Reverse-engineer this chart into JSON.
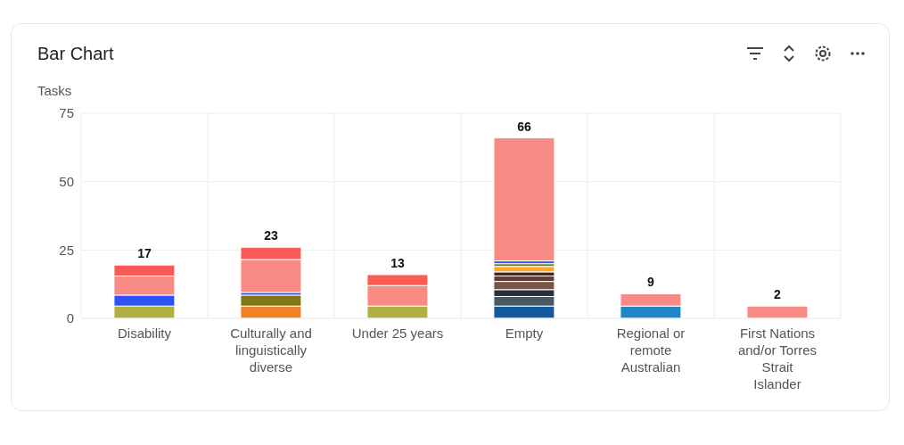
{
  "chart_data": {
    "type": "bar",
    "title": "Bar Chart",
    "ylabel": "Tasks",
    "stacked": true,
    "categories": [
      "Disability",
      "Culturally and linguistically diverse",
      "Under 25 years",
      "Empty",
      "Regional or remote Australian",
      "First Nations and/or Torres Strait Islander"
    ],
    "series": [
      {
        "color": "#b0b043",
        "values": [
          4.5,
          null,
          4.5,
          null,
          null,
          null
        ]
      },
      {
        "color": "#ef8129",
        "values": [
          null,
          4.5,
          null,
          null,
          null,
          null
        ]
      },
      {
        "color": "#14599a",
        "values": [
          null,
          null,
          null,
          4.5,
          null,
          null
        ]
      },
      {
        "color": "#1f86c8",
        "values": [
          null,
          null,
          null,
          null,
          4.5,
          null
        ]
      },
      {
        "color": "#455a64",
        "values": [
          null,
          null,
          null,
          3.5,
          null,
          null
        ]
      },
      {
        "color": "#263238",
        "values": [
          null,
          null,
          null,
          2.5,
          null,
          null
        ]
      },
      {
        "color": "#795548",
        "values": [
          null,
          null,
          null,
          3,
          null,
          null
        ]
      },
      {
        "color": "#5d4037",
        "values": [
          null,
          null,
          null,
          2,
          null,
          null
        ]
      },
      {
        "color": "#3e2723",
        "values": [
          null,
          null,
          null,
          1.5,
          null,
          null
        ]
      },
      {
        "color": "#ffa726",
        "values": [
          null,
          null,
          null,
          2,
          null,
          null
        ]
      },
      {
        "color": "#827717",
        "values": [
          null,
          4,
          null,
          1,
          null,
          null
        ]
      },
      {
        "color": "#3050f8",
        "values": [
          4,
          1,
          null,
          1,
          null,
          null
        ]
      },
      {
        "color": "#f88b84",
        "values": [
          7,
          12,
          7.5,
          45,
          4.5,
          4.5
        ]
      },
      {
        "color": "#fa5b57",
        "values": [
          4,
          4.5,
          4,
          null,
          null,
          null
        ]
      }
    ],
    "totals": [
      "17",
      "23",
      "13",
      "66",
      "9",
      "2"
    ],
    "ylim": [
      0,
      75
    ],
    "yticks": [
      0,
      25,
      50,
      75
    ],
    "grid": true
  }
}
